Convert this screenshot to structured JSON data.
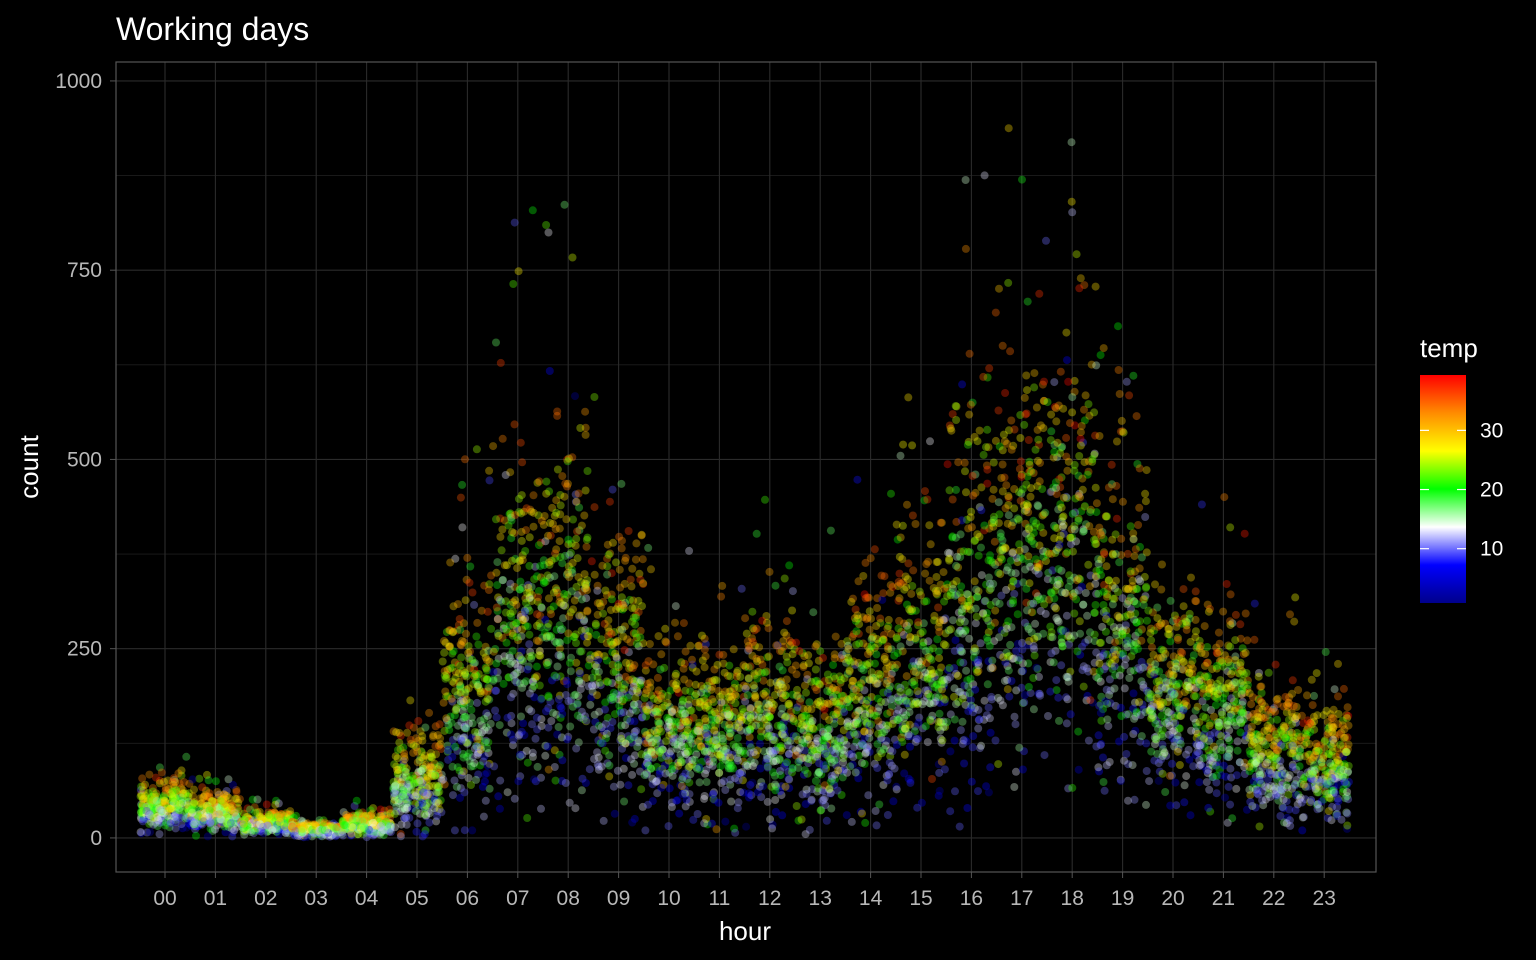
{
  "chart_data": {
    "type": "scatter",
    "title": "Working days",
    "xlabel": "hour",
    "ylabel": "count",
    "x_categories": [
      "00",
      "01",
      "02",
      "03",
      "04",
      "05",
      "06",
      "07",
      "08",
      "09",
      "10",
      "11",
      "12",
      "13",
      "14",
      "15",
      "16",
      "17",
      "18",
      "19",
      "20",
      "21",
      "22",
      "23"
    ],
    "y_ticks": [
      0,
      250,
      500,
      750,
      1000
    ],
    "ylim": [
      -45,
      1025
    ],
    "grid": true,
    "background": "#000000",
    "legend": {
      "title": "temp",
      "placement": "right",
      "ticks": [
        10,
        20,
        30
      ],
      "range": [
        0.82,
        39.36
      ],
      "colors": [
        "#00008b",
        "#0000ff",
        "#ffffff",
        "#00ff00",
        "#ffff00",
        "#ff8c00",
        "#ff0000"
      ]
    },
    "point_alpha": 0.35,
    "series": [
      {
        "summary_by_hour": [
          {
            "hour": "00",
            "typical": 30,
            "min": 3,
            "max": 120
          },
          {
            "hour": "01",
            "typical": 15,
            "min": 2,
            "max": 90
          },
          {
            "hour": "02",
            "typical": 8,
            "min": 1,
            "max": 55
          },
          {
            "hour": "03",
            "typical": 5,
            "min": 1,
            "max": 30
          },
          {
            "hour": "04",
            "typical": 8,
            "min": 1,
            "max": 50
          },
          {
            "hour": "05",
            "typical": 40,
            "min": 2,
            "max": 210
          },
          {
            "hour": "06",
            "typical": 150,
            "min": 10,
            "max": 520
          },
          {
            "hour": "07",
            "typical": 380,
            "min": 15,
            "max": 830
          },
          {
            "hour": "08",
            "typical": 430,
            "min": 20,
            "max": 840
          },
          {
            "hour": "09",
            "typical": 230,
            "min": 20,
            "max": 600
          },
          {
            "hour": "10",
            "typical": 150,
            "min": 10,
            "max": 400
          },
          {
            "hour": "11",
            "typical": 170,
            "min": 5,
            "max": 410
          },
          {
            "hour": "12",
            "typical": 200,
            "min": 5,
            "max": 470
          },
          {
            "hour": "13",
            "typical": 200,
            "min": 5,
            "max": 410
          },
          {
            "hour": "14",
            "typical": 200,
            "min": 10,
            "max": 540
          },
          {
            "hour": "15",
            "typical": 230,
            "min": 10,
            "max": 640
          },
          {
            "hour": "16",
            "typical": 380,
            "min": 15,
            "max": 930
          },
          {
            "hour": "17",
            "typical": 560,
            "min": 50,
            "max": 960
          },
          {
            "hour": "18",
            "typical": 520,
            "min": 50,
            "max": 980
          },
          {
            "hour": "19",
            "typical": 360,
            "min": 40,
            "max": 770
          },
          {
            "hour": "20",
            "typical": 260,
            "min": 30,
            "max": 520
          },
          {
            "hour": "21",
            "typical": 190,
            "min": 20,
            "max": 460
          },
          {
            "hour": "22",
            "typical": 140,
            "min": 5,
            "max": 330
          },
          {
            "hour": "23",
            "typical": 90,
            "min": 10,
            "max": 260
          }
        ]
      }
    ]
  }
}
